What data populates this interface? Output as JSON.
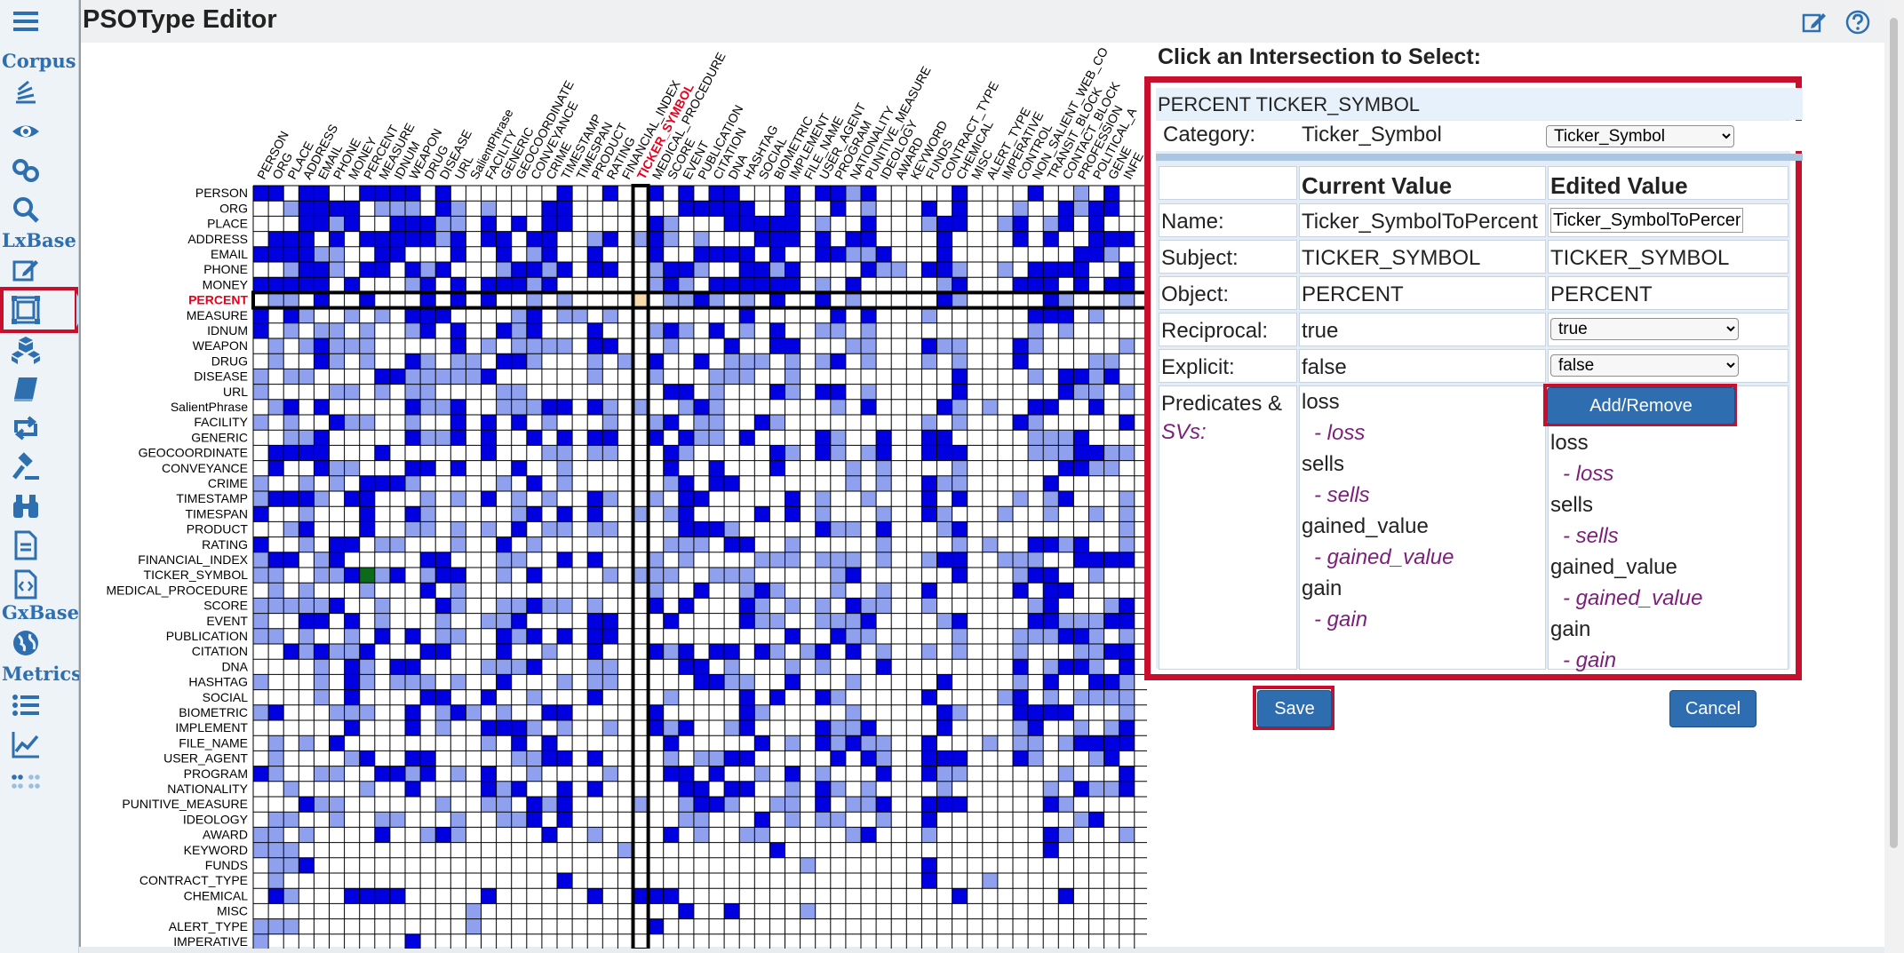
{
  "app": {
    "title": "PSOType Editor"
  },
  "sidebar": {
    "sections": [
      {
        "label": "Corpus",
        "icons": [
          "corpus-stack-icon",
          "eye-icon",
          "link-icon",
          "search-icon"
        ]
      },
      {
        "label": "LxBase",
        "icons": [
          "edit-icon",
          "psotype-matrix-icon",
          "cubes-icon",
          "book-icon",
          "retweet-icon",
          "gavel-icon",
          "binoculars-icon",
          "document-icon",
          "code-file-icon"
        ]
      },
      {
        "label": "GxBase",
        "icons": [
          "globe-icon"
        ]
      },
      {
        "label": "Metrics",
        "icons": [
          "list-icon",
          "chart-line-icon",
          "dots-grid-icon"
        ]
      }
    ],
    "selected_icon": "psotype-matrix-icon"
  },
  "matrix": {
    "column_types": [
      "PERSON",
      "ORG",
      "PLACE",
      "ADDRESS",
      "EMAIL",
      "PHONE",
      "MONEY",
      "PERCENT",
      "MEASURE",
      "IDNUM",
      "WEAPON",
      "DRUG",
      "DISEASE",
      "URL",
      "SalientPhrase",
      "FACILITY",
      "GENERIC",
      "GEOCOORDINATE",
      "CONVEYANCE",
      "CRIME",
      "TIMESTAMP",
      "TIMESPAN",
      "PRODUCT",
      "RATING",
      "FINANCIAL_INDEX",
      "TICKER_SYMBOL",
      "MEDICAL_PROCEDURE",
      "SCORE",
      "EVENT",
      "PUBLICATION",
      "CITATION",
      "DNA",
      "HASHTAG",
      "SOCIAL",
      "BIOMETRIC",
      "IMPLEMENT",
      "FILE_NAME",
      "USER_AGENT",
      "PROGRAM",
      "NATIONALITY",
      "PUNITIVE_MEASURE",
      "IDEOLOGY",
      "AWARD",
      "KEYWORD",
      "FUNDS",
      "CONTRACT_TYPE",
      "CHEMICAL",
      "MISC",
      "ALERT_TYPE",
      "IMPERATIVE",
      "CONTROL",
      "NON_SALIENT_WEB_CO",
      "TRANSIT_BLOCK",
      "CONTACT_BLOCK",
      "PROFESSION",
      "POLITICAL_A",
      "GENE",
      "INFE"
    ],
    "row_types": [
      "PERSON",
      "ORG",
      "PLACE",
      "ADDRESS",
      "EMAIL",
      "PHONE",
      "MONEY",
      "PERCENT",
      "MEASURE",
      "IDNUM",
      "WEAPON",
      "DRUG",
      "DISEASE",
      "URL",
      "SalientPhrase",
      "FACILITY",
      "GENERIC",
      "GEOCOORDINATE",
      "CONVEYANCE",
      "CRIME",
      "TIMESTAMP",
      "TIMESPAN",
      "PRODUCT",
      "RATING",
      "FINANCIAL_INDEX",
      "TICKER_SYMBOL",
      "MEDICAL_PROCEDURE",
      "SCORE",
      "EVENT",
      "PUBLICATION",
      "CITATION",
      "DNA",
      "HASHTAG",
      "SOCIAL",
      "BIOMETRIC",
      "IMPLEMENT",
      "FILE_NAME",
      "USER_AGENT",
      "PROGRAM",
      "NATIONALITY",
      "PUNITIVE_MEASURE",
      "IDEOLOGY",
      "AWARD",
      "KEYWORD",
      "FUNDS",
      "CONTRACT_TYPE",
      "CHEMICAL",
      "MISC",
      "ALERT_TYPE",
      "IMPERATIVE"
    ],
    "highlighted_row": "PERCENT",
    "highlighted_column": "TICKER_SYMBOL",
    "selected_cell": {
      "row": "TICKER_SYMBOL",
      "column": "PERCENT"
    },
    "colors": {
      "dark": "#0000e0",
      "light": "#8ea0ee",
      "selected": "#0b6b1a",
      "intersection": "#f7dcaa",
      "highlight_label": "#e8001c",
      "grid": "#000000"
    }
  },
  "panel": {
    "heading": "Click an Intersection to Select:",
    "pair_title": "PERCENT TICKER_SYMBOL",
    "category_label": "Category:",
    "category_value": "Ticker_Symbol",
    "category_options": [
      "Ticker_Symbol"
    ],
    "col_current": "Current Value",
    "col_edited": "Edited Value",
    "name_label": "Name:",
    "name_current": "Ticker_SymbolToPercent",
    "name_edited": "Ticker_SymbolToPercent",
    "subject_label": "Subject:",
    "subject_current": "TICKER_SYMBOL",
    "subject_edited": "TICKER_SYMBOL",
    "object_label": "Object:",
    "object_current": "PERCENT",
    "object_edited": "PERCENT",
    "reciprocal_label": "Reciprocal:",
    "reciprocal_current": "true",
    "reciprocal_edited": "true",
    "reciprocal_options": [
      "true",
      "false"
    ],
    "explicit_label": "Explicit:",
    "explicit_current": "false",
    "explicit_edited": "false",
    "explicit_options": [
      "true",
      "false"
    ],
    "predicates_label": "Predicates &",
    "svs_label": "SVs:",
    "predicates_current": [
      {
        "predicate": "loss",
        "sv": "- loss"
      },
      {
        "predicate": "sells",
        "sv": "- sells"
      },
      {
        "predicate": "gained_value",
        "sv": "- gained_value"
      },
      {
        "predicate": "gain",
        "sv": "- gain"
      }
    ],
    "predicates_edited": [
      {
        "predicate": "loss",
        "sv": "- loss"
      },
      {
        "predicate": "sells",
        "sv": "- sells"
      },
      {
        "predicate": "gained_value",
        "sv": "- gained_value"
      },
      {
        "predicate": "gain",
        "sv": "- gain"
      }
    ],
    "add_remove_label": "Add/Remove",
    "save_label": "Save",
    "cancel_label": "Cancel"
  }
}
